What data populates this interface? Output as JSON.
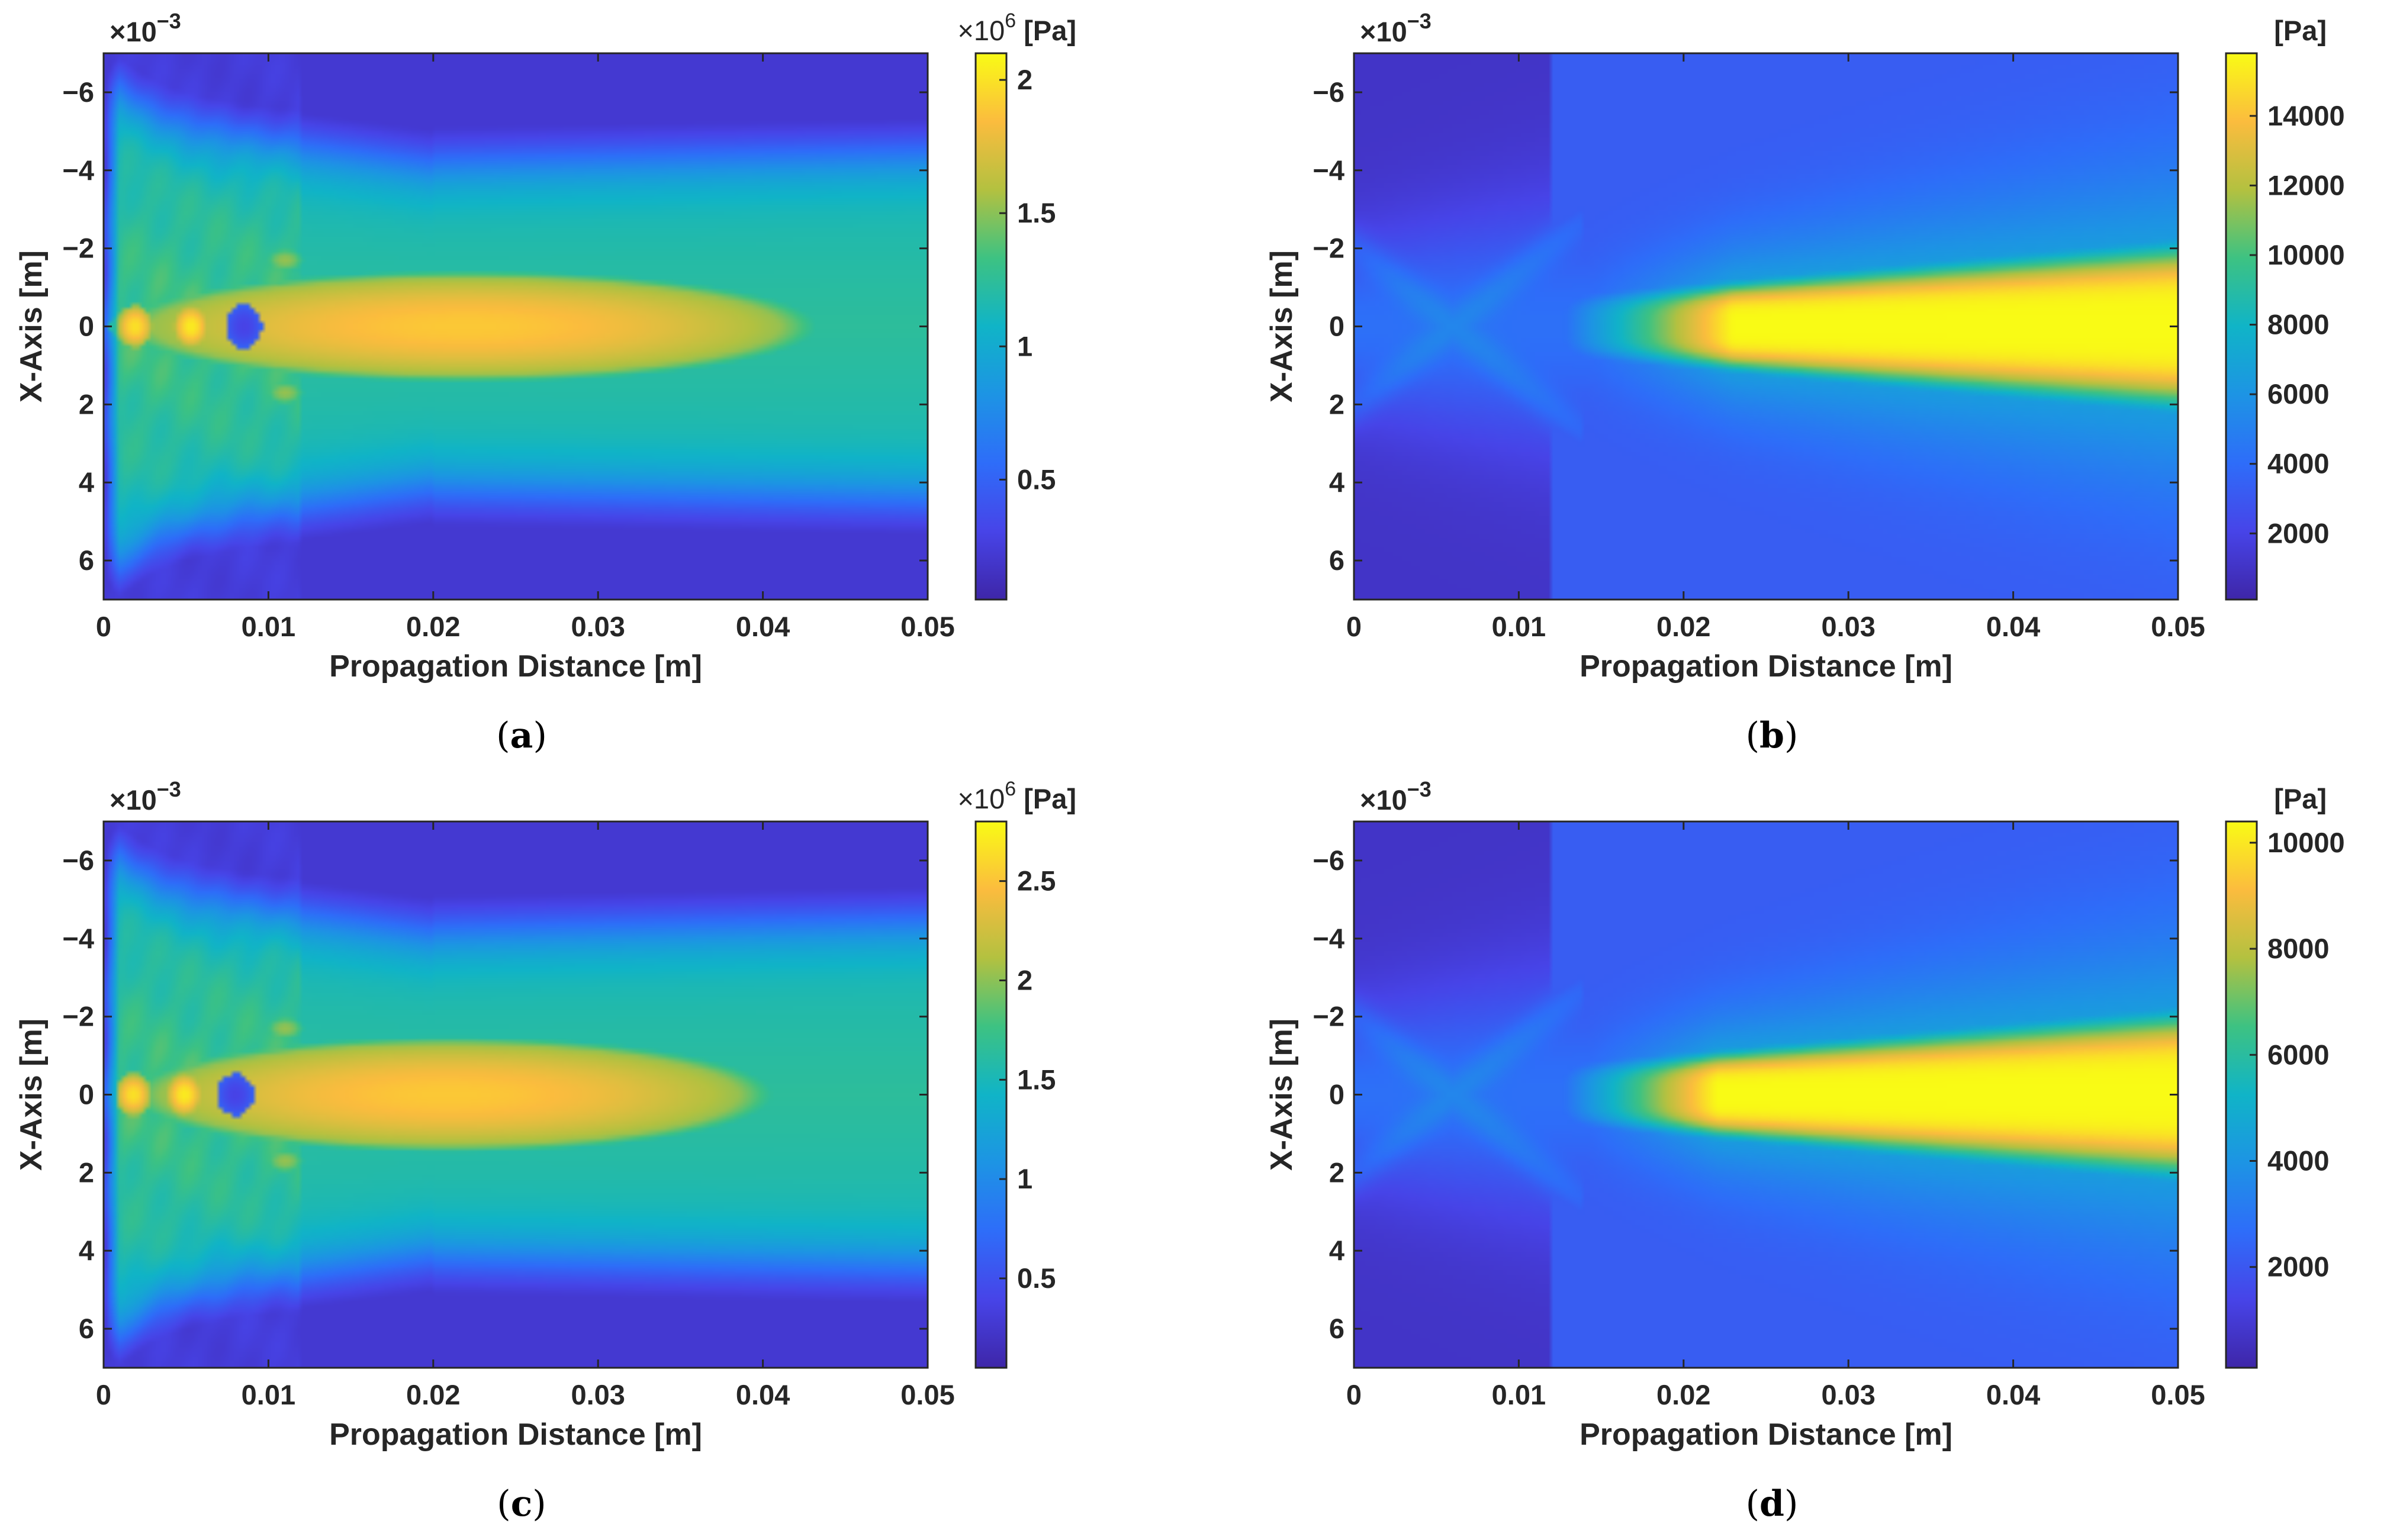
{
  "figure": {
    "panels_order": [
      "a",
      "b",
      "c",
      "d"
    ]
  },
  "chart_data": [
    {
      "id": "a",
      "type": "heatmap",
      "caption": "a",
      "xlabel": "Propagation Distance [m]",
      "ylabel": "X-Axis [m]",
      "y_multiplier_base": "×10",
      "y_multiplier_exp": "−3",
      "xlim": [
        0,
        0.05
      ],
      "ylim": [
        -7,
        7
      ],
      "xticks": [
        0,
        0.01,
        0.02,
        0.03,
        0.04,
        0.05
      ],
      "xtick_labels": [
        "0",
        "0.01",
        "0.02",
        "0.03",
        "0.04",
        "0.05"
      ],
      "yticks": [
        -6,
        -4,
        -2,
        0,
        2,
        4,
        6
      ],
      "ytick_labels": [
        "−6",
        "−4",
        "−2",
        "0",
        "2",
        "4",
        "6"
      ],
      "colorbar": {
        "min": 0.05,
        "max": 2.1,
        "ticks": [
          0.5,
          1,
          1.5,
          2
        ],
        "tick_labels": [
          "0.5",
          "1",
          "1.5",
          "2"
        ],
        "multiplier_base": "×10",
        "multiplier_exp": "6",
        "unit": "[Pa]"
      },
      "field": {
        "pattern": "near",
        "background_level": 0.5,
        "focal_center_x": 0.022,
        "focal_peak": 0.9,
        "focal_half_length": 0.019,
        "focal_half_width": 1.25,
        "hotspots": [
          {
            "x": 0.0019,
            "value": 0.95
          },
          {
            "x": 0.0053,
            "value": 0.97
          },
          {
            "x": 0.0085,
            "value": 0.12
          }
        ]
      }
    },
    {
      "id": "b",
      "type": "heatmap",
      "caption": "b",
      "xlabel": "Propagation Distance [m]",
      "ylabel": "X-Axis [m]",
      "y_multiplier_base": "×10",
      "y_multiplier_exp": "−3",
      "xlim": [
        0,
        0.05
      ],
      "ylim": [
        -7,
        7
      ],
      "xticks": [
        0,
        0.01,
        0.02,
        0.03,
        0.04,
        0.05
      ],
      "xtick_labels": [
        "0",
        "0.01",
        "0.02",
        "0.03",
        "0.04",
        "0.05"
      ],
      "yticks": [
        -6,
        -4,
        -2,
        0,
        2,
        4,
        6
      ],
      "ytick_labels": [
        "−6",
        "−4",
        "−2",
        "0",
        "2",
        "4",
        "6"
      ],
      "colorbar": {
        "min": 100,
        "max": 15800,
        "ticks": [
          2000,
          4000,
          6000,
          8000,
          10000,
          12000,
          14000
        ],
        "tick_labels": [
          "2000",
          "4000",
          "6000",
          "8000",
          "10000",
          "12000",
          "14000"
        ],
        "multiplier_base": "",
        "multiplier_exp": "",
        "unit": "[Pa]"
      },
      "field": {
        "pattern": "far",
        "beam_start_x": 0.019,
        "beam_peak": 1.0
      }
    },
    {
      "id": "c",
      "type": "heatmap",
      "caption": "c",
      "xlabel": "Propagation Distance [m]",
      "ylabel": "X-Axis [m]",
      "y_multiplier_base": "×10",
      "y_multiplier_exp": "−3",
      "xlim": [
        0,
        0.05
      ],
      "ylim": [
        -7,
        7
      ],
      "xticks": [
        0,
        0.01,
        0.02,
        0.03,
        0.04,
        0.05
      ],
      "xtick_labels": [
        "0",
        "0.01",
        "0.02",
        "0.03",
        "0.04",
        "0.05"
      ],
      "yticks": [
        -6,
        -4,
        -2,
        0,
        2,
        4,
        6
      ],
      "ytick_labels": [
        "−6",
        "−4",
        "−2",
        "0",
        "2",
        "4",
        "6"
      ],
      "colorbar": {
        "min": 0.05,
        "max": 2.8,
        "ticks": [
          0.5,
          1,
          1.5,
          2,
          2.5
        ],
        "tick_labels": [
          "0.5",
          "1",
          "1.5",
          "2",
          "2.5"
        ],
        "multiplier_base": "×10",
        "multiplier_exp": "6",
        "unit": "[Pa]"
      },
      "field": {
        "pattern": "near",
        "background_level": 0.5,
        "focal_center_x": 0.021,
        "focal_peak": 0.9,
        "focal_half_length": 0.0175,
        "focal_half_width": 1.3,
        "hotspots": [
          {
            "x": 0.0018,
            "value": 0.95
          },
          {
            "x": 0.0049,
            "value": 0.97
          },
          {
            "x": 0.008,
            "value": 0.12
          }
        ]
      }
    },
    {
      "id": "d",
      "type": "heatmap",
      "caption": "d",
      "xlabel": "Propagation Distance [m]",
      "ylabel": "X-Axis [m]",
      "y_multiplier_base": "×10",
      "y_multiplier_exp": "−3",
      "xlim": [
        0,
        0.05
      ],
      "ylim": [
        -7,
        7
      ],
      "xticks": [
        0,
        0.01,
        0.02,
        0.03,
        0.04,
        0.05
      ],
      "xtick_labels": [
        "0",
        "0.01",
        "0.02",
        "0.03",
        "0.04",
        "0.05"
      ],
      "yticks": [
        -6,
        -4,
        -2,
        0,
        2,
        4,
        6
      ],
      "ytick_labels": [
        "−6",
        "−4",
        "−2",
        "0",
        "2",
        "4",
        "6"
      ],
      "colorbar": {
        "min": 100,
        "max": 10400,
        "ticks": [
          2000,
          4000,
          6000,
          8000,
          10000
        ],
        "tick_labels": [
          "2000",
          "4000",
          "6000",
          "8000",
          "10000"
        ],
        "multiplier_base": "",
        "multiplier_exp": "",
        "unit": "[Pa]"
      },
      "field": {
        "pattern": "far",
        "beam_start_x": 0.018,
        "beam_peak": 1.0
      }
    }
  ]
}
